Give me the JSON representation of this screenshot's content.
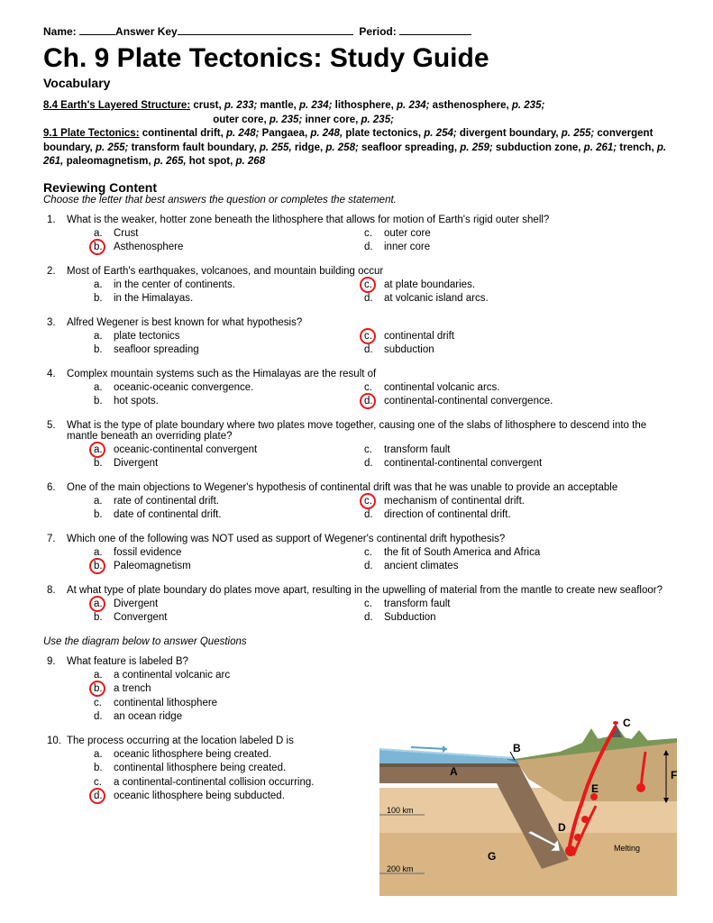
{
  "header": {
    "name_label": "Name:",
    "answer_key": "Answer Key",
    "period_label": "Period:"
  },
  "title": "Ch. 9 Plate Tectonics:  Study Guide",
  "vocab_heading": "Vocabulary",
  "vocab": {
    "section1": {
      "title": "8.4 Earth's Layered Structure:",
      "terms": [
        {
          "t": "crust,",
          "p": "p. 233;"
        },
        {
          "t": "mantle,",
          "p": "p. 234;"
        },
        {
          "t": "lithosphere,",
          "p": "p. 234;"
        },
        {
          "t": "asthenosphere,",
          "p": "p. 235;"
        },
        {
          "t": "outer core,",
          "p": "p. 235;"
        },
        {
          "t": "inner core,",
          "p": "p. 235;"
        }
      ]
    },
    "section2": {
      "title": "9.1 Plate Tectonics:",
      "line": "continental drift, p. 248; Pangaea, p. 248, plate tectonics, p. 254; divergent boundary, p. 255; convergent boundary, p. 255; transform fault boundary, p. 255, ridge, p. 258; seafloor spreading, p. 259; subduction zone, p. 261; trench, p. 261, paleomagnetism, p. 265,  hot spot, p. 268"
    }
  },
  "review_heading": "Reviewing Content",
  "instructions": "Choose the letter that best answers the question or completes the statement.",
  "questions": [
    {
      "num": "1.",
      "text": "What is the weaker, hotter zone beneath the lithosphere that allows for motion of Earth's rigid outer shell?",
      "choices": [
        {
          "l": "a.",
          "t": "Crust"
        },
        {
          "l": "b.",
          "t": "Asthenosphere"
        },
        {
          "l": "c.",
          "t": "outer core"
        },
        {
          "l": "d.",
          "t": "inner core"
        }
      ],
      "answer": 1
    },
    {
      "num": "2.",
      "text": "Most of Earth's earthquakes, volcanoes, and mountain building occur",
      "choices": [
        {
          "l": "a.",
          "t": "in the center of continents."
        },
        {
          "l": "b.",
          "t": "in the Himalayas."
        },
        {
          "l": "c.",
          "t": "at plate boundaries."
        },
        {
          "l": "d.",
          "t": "at volcanic island arcs."
        }
      ],
      "answer": 2
    },
    {
      "num": "3.",
      "text": "Alfred Wegener is best known for what hypothesis?",
      "choices": [
        {
          "l": "a.",
          "t": "plate tectonics"
        },
        {
          "l": "b.",
          "t": "seafloor spreading"
        },
        {
          "l": "c.",
          "t": "continental drift"
        },
        {
          "l": "d.",
          "t": "subduction"
        }
      ],
      "answer": 2
    },
    {
      "num": "4.",
      "text": "Complex mountain systems such as the Himalayas are the result of",
      "choices": [
        {
          "l": "a.",
          "t": "oceanic-oceanic convergence."
        },
        {
          "l": "b.",
          "t": "hot spots."
        },
        {
          "l": "c.",
          "t": "continental volcanic arcs."
        },
        {
          "l": "d.",
          "t": "continental-continental convergence."
        }
      ],
      "answer": 3
    },
    {
      "num": "5.",
      "text": "What is the type of plate boundary where two plates move together, causing one of the slabs of lithosphere to descend into the mantle beneath an overriding plate?",
      "choices": [
        {
          "l": "a.",
          "t": "oceanic-continental convergent"
        },
        {
          "l": "b.",
          "t": "Divergent"
        },
        {
          "l": "c.",
          "t": "transform fault"
        },
        {
          "l": "d.",
          "t": "continental-continental convergent"
        }
      ],
      "answer": 0
    },
    {
      "num": "6.",
      "text": "One of the main objections to Wegener's hypothesis of continental drift was that he was unable to provide an acceptable",
      "choices": [
        {
          "l": "a.",
          "t": "rate of continental drift."
        },
        {
          "l": "b.",
          "t": "date of continental drift."
        },
        {
          "l": "c.",
          "t": "mechanism of continental drift."
        },
        {
          "l": "d.",
          "t": "direction of continental drift."
        }
      ],
      "answer": 2
    },
    {
      "num": "7.",
      "text": "Which one of the following was NOT used as support of Wegener's continental drift hypothesis?",
      "choices": [
        {
          "l": "a.",
          "t": "fossil evidence"
        },
        {
          "l": "b.",
          "t": "Paleomagnetism"
        },
        {
          "l": "c.",
          "t": "the fit of South America and Africa"
        },
        {
          "l": "d.",
          "t": "ancient climates"
        }
      ],
      "answer": 1
    },
    {
      "num": "8.",
      "text": "At what type of plate boundary do plates move apart, resulting in the upwelling of material from the mantle to create new seafloor?",
      "choices": [
        {
          "l": "a.",
          "t": "Divergent"
        },
        {
          "l": "b.",
          "t": "Convergent"
        },
        {
          "l": "c.",
          "t": "transform fault"
        },
        {
          "l": "d.",
          "t": "Subduction"
        }
      ],
      "answer": 0
    }
  ],
  "diagram_instr": "Use the diagram below to answer Questions",
  "diagram_questions": [
    {
      "num": "9.",
      "text": "What feature is labeled B?",
      "choices": [
        {
          "l": "a.",
          "t": "a continental volcanic arc"
        },
        {
          "l": "b.",
          "t": "a trench"
        },
        {
          "l": "c.",
          "t": "continental lithosphere"
        },
        {
          "l": "d.",
          "t": "an ocean ridge"
        }
      ],
      "answer": 1
    },
    {
      "num": "10.",
      "text": "The process occurring at the location labeled D is",
      "choices": [
        {
          "l": "a.",
          "t": "oceanic lithosphere being created."
        },
        {
          "l": "b.",
          "t": "continental lithosphere being created."
        },
        {
          "l": "c.",
          "t": "a continental-continental collision occurring."
        },
        {
          "l": "d.",
          "t": "oceanic lithosphere being subducted."
        }
      ],
      "answer": 3
    }
  ],
  "diagram": {
    "labels": {
      "A": "A",
      "B": "B",
      "C": "C",
      "D": "D",
      "E": "E",
      "F": "F",
      "G": "G",
      "depth1": "100 km",
      "depth2": "200 km",
      "melting": "Melting"
    },
    "colors": {
      "ocean": "#7bb6d6",
      "ocean_deep": "#4a8db5",
      "land": "#7a9656",
      "crust_oceanic": "#8a6f56",
      "crust_cont": "#c9a878",
      "mantle": "#d4a574",
      "mantle_light": "#e8c9a0",
      "magma": "#e8191b",
      "arrow": "#ffffff",
      "label_bg": "#ffffff",
      "depth_line": "#666666"
    }
  },
  "answer_circle_color": "#e8191b"
}
